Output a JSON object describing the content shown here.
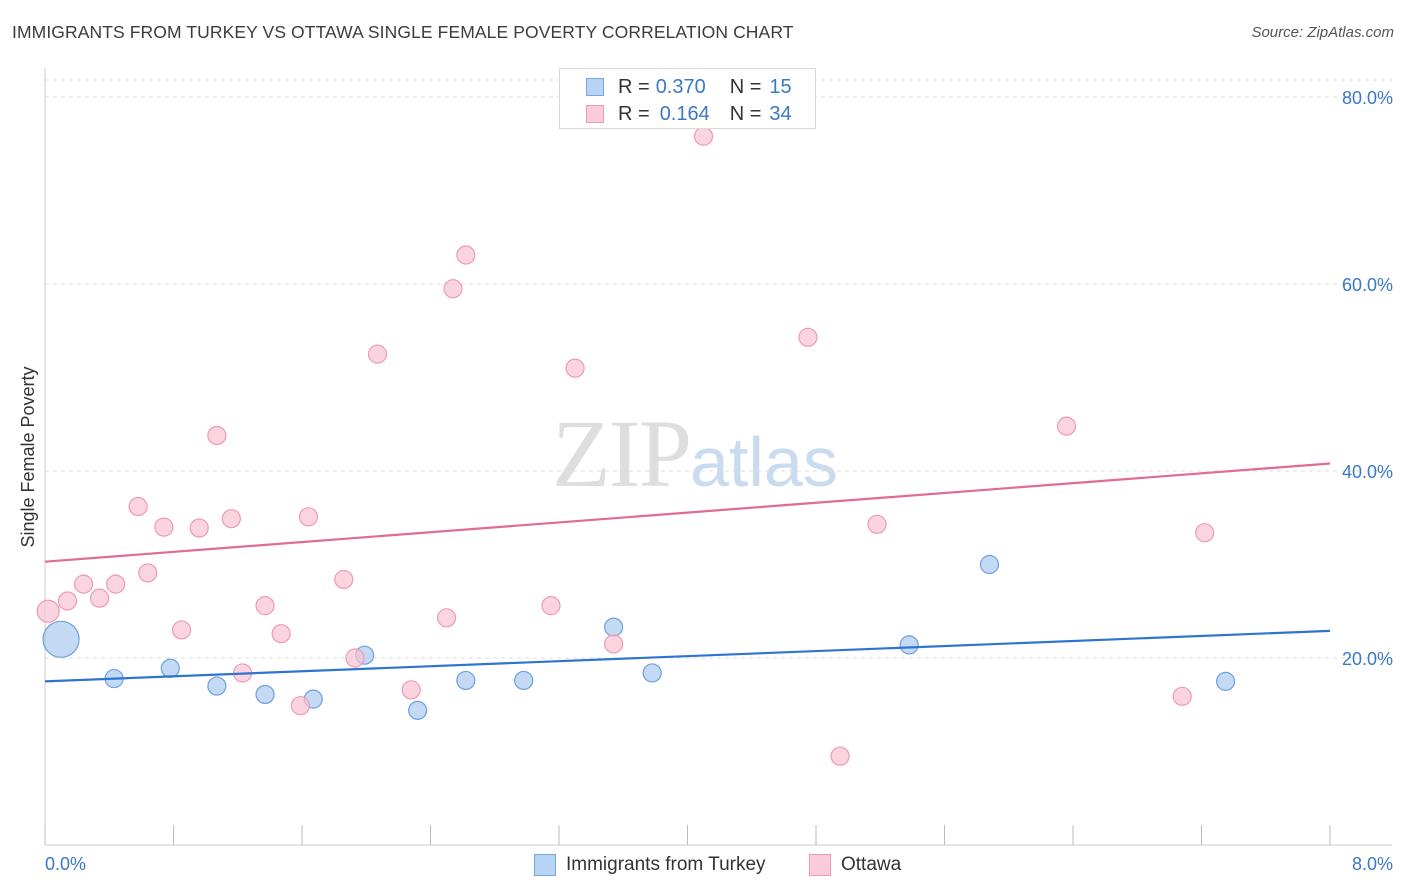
{
  "title": "IMMIGRANTS FROM TURKEY VS OTTAWA SINGLE FEMALE POVERTY CORRELATION CHART",
  "source": "Source: ZipAtlas.com",
  "watermark": {
    "zip": "ZIP",
    "atlas": "atlas"
  },
  "legend": {
    "rows": [
      {
        "r_label": "R = ",
        "r_value": "0.370",
        "n_label": "N = ",
        "n_value": "15",
        "color": "#b7d3f5",
        "border": "#7aa7e0"
      },
      {
        "r_label": "R = ",
        "r_value": "0.164",
        "n_label": "N = ",
        "n_value": "34",
        "color": "#fbcbd9",
        "border": "#ef9ab5"
      }
    ]
  },
  "chart_data": {
    "type": "scatter",
    "title": "IMMIGRANTS FROM TURKEY VS OTTAWA SINGLE FEMALE POVERTY CORRELATION CHART",
    "xlabel": "",
    "ylabel": "Single Female Poverty",
    "xlim": [
      0,
      8
    ],
    "ylim": [
      0,
      80
    ],
    "x_tick_labels": [
      "0.0%",
      "8.0%"
    ],
    "y_ticks": [
      20,
      40,
      60,
      80
    ],
    "y_tick_labels": [
      "20.0%",
      "40.0%",
      "60.0%",
      "80.0%"
    ],
    "grid": "horizontal dashed",
    "legend_position": "top-center",
    "series": [
      {
        "name": "Immigrants from Turkey",
        "color": "#a9c9f0",
        "stroke": "#6f9fdc",
        "line_color": "#2f74d0",
        "trend": {
          "x": [
            0,
            8
          ],
          "y": [
            17.5,
            22.9
          ]
        },
        "points": [
          {
            "x": 0.1,
            "y": 22.0,
            "size": 18
          },
          {
            "x": 0.43,
            "y": 17.8,
            "size": 9
          },
          {
            "x": 0.78,
            "y": 18.9,
            "size": 9
          },
          {
            "x": 1.07,
            "y": 17.0,
            "size": 9
          },
          {
            "x": 1.37,
            "y": 16.1,
            "size": 9
          },
          {
            "x": 1.67,
            "y": 15.6,
            "size": 9
          },
          {
            "x": 1.99,
            "y": 20.3,
            "size": 9
          },
          {
            "x": 2.32,
            "y": 14.4,
            "size": 9
          },
          {
            "x": 2.62,
            "y": 17.6,
            "size": 9
          },
          {
            "x": 2.98,
            "y": 17.6,
            "size": 9
          },
          {
            "x": 3.54,
            "y": 23.3,
            "size": 9
          },
          {
            "x": 3.78,
            "y": 18.4,
            "size": 9
          },
          {
            "x": 5.38,
            "y": 21.4,
            "size": 9
          },
          {
            "x": 5.88,
            "y": 30.0,
            "size": 9
          },
          {
            "x": 7.35,
            "y": 17.5,
            "size": 9
          }
        ]
      },
      {
        "name": "Ottawa",
        "color": "#f8c3d3",
        "stroke": "#ee9ab5",
        "line_color": "#e06b93",
        "trend": {
          "x": [
            0,
            8
          ],
          "y": [
            30.3,
            40.8
          ]
        },
        "points": [
          {
            "x": 0.02,
            "y": 25.0,
            "size": 11
          },
          {
            "x": 0.14,
            "y": 26.1,
            "size": 9
          },
          {
            "x": 0.24,
            "y": 27.9,
            "size": 9
          },
          {
            "x": 0.34,
            "y": 26.4,
            "size": 9
          },
          {
            "x": 0.44,
            "y": 27.9,
            "size": 9
          },
          {
            "x": 0.58,
            "y": 36.2,
            "size": 9
          },
          {
            "x": 0.64,
            "y": 29.1,
            "size": 9
          },
          {
            "x": 0.74,
            "y": 34.0,
            "size": 9
          },
          {
            "x": 0.85,
            "y": 23.0,
            "size": 9
          },
          {
            "x": 0.96,
            "y": 33.9,
            "size": 9
          },
          {
            "x": 1.07,
            "y": 43.8,
            "size": 9
          },
          {
            "x": 1.16,
            "y": 34.9,
            "size": 9
          },
          {
            "x": 1.23,
            "y": 18.4,
            "size": 9
          },
          {
            "x": 1.37,
            "y": 25.6,
            "size": 9
          },
          {
            "x": 1.47,
            "y": 22.6,
            "size": 9
          },
          {
            "x": 1.59,
            "y": 14.9,
            "size": 9
          },
          {
            "x": 1.64,
            "y": 35.1,
            "size": 9
          },
          {
            "x": 1.86,
            "y": 28.4,
            "size": 9
          },
          {
            "x": 1.93,
            "y": 20.0,
            "size": 9
          },
          {
            "x": 2.07,
            "y": 52.5,
            "size": 9
          },
          {
            "x": 2.28,
            "y": 16.6,
            "size": 9
          },
          {
            "x": 2.5,
            "y": 24.3,
            "size": 9
          },
          {
            "x": 2.54,
            "y": 59.5,
            "size": 9
          },
          {
            "x": 2.62,
            "y": 63.1,
            "size": 9
          },
          {
            "x": 3.15,
            "y": 25.6,
            "size": 9
          },
          {
            "x": 3.3,
            "y": 51.0,
            "size": 9
          },
          {
            "x": 3.54,
            "y": 21.5,
            "size": 9
          },
          {
            "x": 4.1,
            "y": 75.8,
            "size": 9
          },
          {
            "x": 4.75,
            "y": 54.3,
            "size": 9
          },
          {
            "x": 4.95,
            "y": 9.5,
            "size": 9
          },
          {
            "x": 5.18,
            "y": 34.3,
            "size": 9
          },
          {
            "x": 6.36,
            "y": 44.8,
            "size": 9
          },
          {
            "x": 7.08,
            "y": 15.9,
            "size": 9
          },
          {
            "x": 7.22,
            "y": 33.4,
            "size": 9
          }
        ]
      }
    ]
  }
}
